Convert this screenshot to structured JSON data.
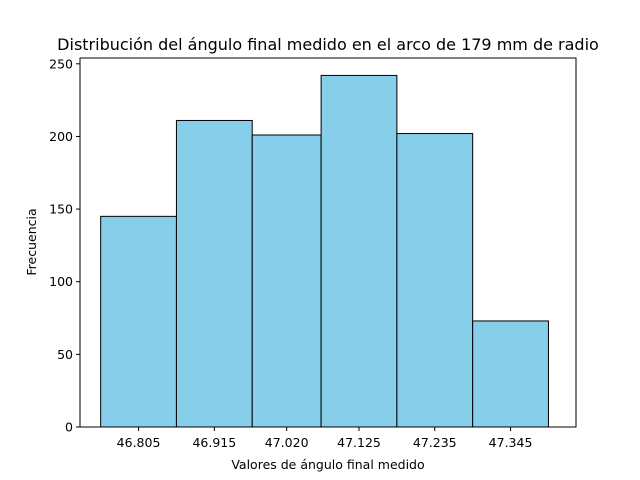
{
  "chart_data": {
    "type": "bar",
    "title": "Distribución del ángulo final medido en el arco de 179 mm de radio",
    "xlabel": "Valores de ángulo final medido",
    "ylabel": "Frecuencia",
    "bins": [
      {
        "start": 46.75,
        "end": 46.86,
        "value": 145
      },
      {
        "start": 46.86,
        "end": 46.97,
        "value": 211
      },
      {
        "start": 46.97,
        "end": 47.07,
        "value": 201
      },
      {
        "start": 47.07,
        "end": 47.18,
        "value": 242
      },
      {
        "start": 47.18,
        "end": 47.29,
        "value": 202
      },
      {
        "start": 47.29,
        "end": 47.4,
        "value": 73
      }
    ],
    "x_ticks": [
      "46.805",
      "46.915",
      "47.020",
      "47.125",
      "47.235",
      "47.345"
    ],
    "y_ticks": [
      0,
      50,
      100,
      150,
      200,
      250
    ],
    "xlim": [
      46.72,
      47.44
    ],
    "ylim": [
      0,
      254
    ],
    "bar_color": "#87CEEB",
    "edge_color": "#000000",
    "grid": false
  }
}
